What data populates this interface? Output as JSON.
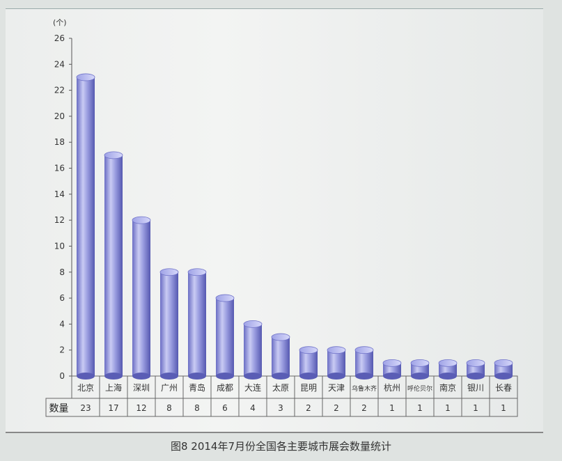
{
  "chart_data": {
    "type": "bar",
    "title": "图8 2014年7月份全国各主要城市展会数量统计",
    "ylabel": "(个)",
    "ylim": [
      0,
      26
    ],
    "yticks": [
      0,
      2,
      4,
      6,
      8,
      10,
      12,
      14,
      16,
      18,
      20,
      22,
      24,
      26
    ],
    "categories": [
      "北京",
      "上海",
      "深圳",
      "广州",
      "青岛",
      "成都",
      "大连",
      "太原",
      "昆明",
      "天津",
      "乌鲁木齐",
      "杭州",
      "呼伦贝尔",
      "南京",
      "银川",
      "长春"
    ],
    "values": [
      23,
      17,
      12,
      8,
      8,
      6,
      4,
      3,
      2,
      2,
      2,
      1,
      1,
      1,
      1,
      1
    ],
    "table_row_label": "数量",
    "bar_color": "#8c8fd8",
    "grid": false,
    "legend": "none"
  }
}
